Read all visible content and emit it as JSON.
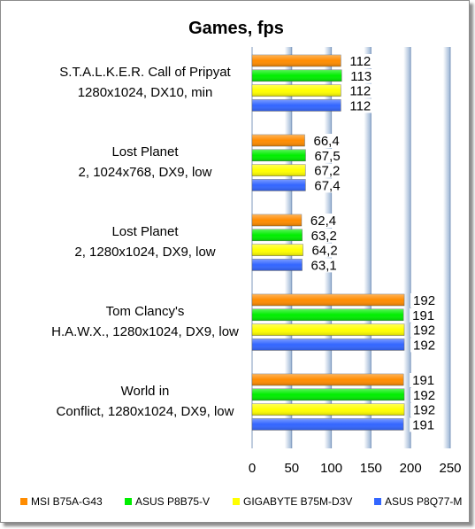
{
  "chart_data": {
    "type": "bar",
    "orientation": "horizontal",
    "title": "Games, fps",
    "xlim": [
      0,
      250
    ],
    "x_ticks": [
      "0",
      "50",
      "100",
      "150",
      "200",
      "250"
    ],
    "grid": true,
    "legend_position": "bottom",
    "categories": [
      [
        "S.T.A.L.K.E.R. Call of Pripyat",
        "1280x1024, DX10, min"
      ],
      [
        "Lost Planet",
        "2, 1024x768, DX9, low"
      ],
      [
        "Lost Planet",
        "2, 1280x1024, DX9, low"
      ],
      [
        "Tom Clancy's",
        "H.A.W.X., 1280x1024, DX9, low"
      ],
      [
        "World in",
        "Conflict, 1280x1024, DX9, low"
      ]
    ],
    "series": [
      {
        "name": "MSI B75A-G43",
        "color": "#ff8c00",
        "values": [
          112,
          66.4,
          62.4,
          192,
          191
        ],
        "labels": [
          "112",
          "66,4",
          "62,4",
          "192",
          "191"
        ]
      },
      {
        "name": "ASUS P8B75-V",
        "color": "#00ee00",
        "values": [
          113,
          67.5,
          63.2,
          191,
          192
        ],
        "labels": [
          "113",
          "67,5",
          "63,2",
          "191",
          "192"
        ]
      },
      {
        "name": "GIGABYTE B75M-D3V",
        "color": "#ffff00",
        "values": [
          112,
          67.2,
          64.2,
          192,
          192
        ],
        "labels": [
          "112",
          "67,2",
          "64,2",
          "192",
          "192"
        ]
      },
      {
        "name": "ASUS P8Q77-M",
        "color": "#3366ff",
        "values": [
          112,
          67.4,
          63.1,
          192,
          191
        ],
        "labels": [
          "112",
          "67,4",
          "63,1",
          "192",
          "191"
        ]
      }
    ]
  }
}
